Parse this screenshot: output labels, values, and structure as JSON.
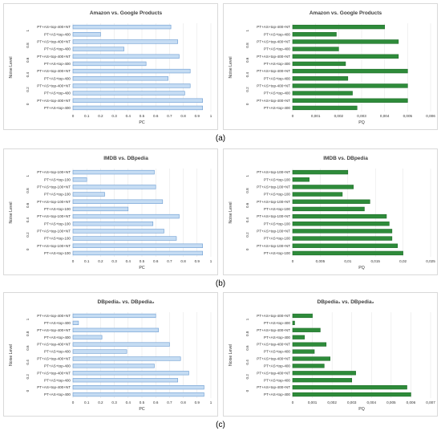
{
  "sub_labels": [
    "(a)",
    "(b)",
    "(c)"
  ],
  "colors": {
    "pc_fill": "#c5dcf3",
    "pc_stroke": "#6a9bd1",
    "pq_fill": "#2e8b3a",
    "pq_stroke": "#1f6e2a"
  },
  "chart_data": [
    {
      "type": "bar",
      "orientation": "horizontal",
      "title": "Amazon vs. Google Products",
      "xlabel": "PC",
      "ylabel": "Noise Level",
      "xlim": [
        0,
        1
      ],
      "xticks": [
        "0",
        "0.1",
        "0.2",
        "0.3",
        "0.4",
        "0.5",
        "0.6",
        "0.7",
        "0.8",
        "0.9",
        "1"
      ],
      "categories": [
        "PT+AS+top-400",
        "PT+AS+top-400+NT",
        "PT+AS+top-400",
        "PT+AS+top-400+NT",
        "PT+AS+top-400",
        "PT+AS+top-400+NT",
        "PT+AS+top-400",
        "PT+AS+top-400+NT",
        "PT+AS+top-400",
        "PT+AS+top-400+NT",
        "PT+AS+top-400",
        "PT+AS+top-400+NT"
      ],
      "noise_levels": [
        "0",
        "0.2",
        "0.4",
        "0.6",
        "0.8",
        "1"
      ],
      "values": [
        0.94,
        0.94,
        0.81,
        0.85,
        0.69,
        0.85,
        0.53,
        0.77,
        0.37,
        0.76,
        0.2,
        0.71
      ]
    },
    {
      "type": "bar",
      "orientation": "horizontal",
      "title": "Amazon vs. Google Products",
      "xlabel": "PQ",
      "ylabel": "Noise Level",
      "xlim": [
        0,
        0.006
      ],
      "xticks": [
        "0",
        "0,001",
        "0,002",
        "0,003",
        "0,004",
        "0,005",
        "0,006"
      ],
      "categories": [
        "PT+AS+top-400",
        "PT+AS+top-400+NT",
        "PT+AS+top-400",
        "PT+AS+top-400+NT",
        "PT+AS+top-400",
        "PT+AS+top-400+NT",
        "PT+AS+top-400",
        "PT+AS+top-400+NT",
        "PT+AS+top-400",
        "PT+AS+top-400+NT",
        "PT+AS+top-400",
        "PT+AS+top-400+NT"
      ],
      "noise_levels": [
        "0",
        "0.2",
        "0.4",
        "0.6",
        "0.8",
        "1"
      ],
      "values": [
        0.0028,
        0.005,
        0.0026,
        0.005,
        0.0024,
        0.005,
        0.0023,
        0.0046,
        0.002,
        0.0046,
        0.0019,
        0.004
      ]
    },
    {
      "type": "bar",
      "orientation": "horizontal",
      "title": "IMDB vs. DBpedia",
      "xlabel": "PC",
      "ylabel": "Noise Level",
      "xlim": [
        0,
        1
      ],
      "xticks": [
        "0",
        "0.1",
        "0.2",
        "0.3",
        "0.4",
        "0.5",
        "0.6",
        "0.7",
        "0.8",
        "0.9",
        "1"
      ],
      "categories": [
        "PT+AS+top-100",
        "PT+AS+top-100+NT",
        "PT+AS+top-100",
        "PT+AS+top-100+NT",
        "PT+AS+top-100",
        "PT+AS+top-100+NT",
        "PT+AS+top-100",
        "PT+AS+top-100+NT",
        "PT+AS+top-100",
        "PT+AS+top-100+NT",
        "PT+AS+top-100",
        "PT+AS+top-100+NT"
      ],
      "noise_levels": [
        "0",
        "0.2",
        "0.4",
        "0.6",
        "0.8",
        "1"
      ],
      "values": [
        0.94,
        0.94,
        0.75,
        0.66,
        0.58,
        0.77,
        0.4,
        0.65,
        0.23,
        0.6,
        0.1,
        0.59
      ]
    },
    {
      "type": "bar",
      "orientation": "horizontal",
      "title": "IMDB vs. DBpedia",
      "xlabel": "PQ",
      "ylabel": "Noise Level",
      "xlim": [
        0,
        0.025
      ],
      "xticks": [
        "0",
        "0,005",
        "0,01",
        "0,015",
        "0,02",
        "0,025"
      ],
      "categories": [
        "PT+AS+top-100",
        "PT+AS+top-100+NT",
        "PT+AS+top-100",
        "PT+AS+top-100+NT",
        "PT+AS+top-100",
        "PT+AS+top-100+NT",
        "PT+AS+top-100",
        "PT+AS+top-100+NT",
        "PT+AS+top-100",
        "PT+AS+top-100+NT",
        "PT+AS+top-100",
        "PT+AS+top-100+NT"
      ],
      "noise_levels": [
        "0",
        "0.2",
        "0.4",
        "0.6",
        "0.8",
        "1"
      ],
      "values": [
        0.02,
        0.019,
        0.018,
        0.018,
        0.0175,
        0.017,
        0.013,
        0.014,
        0.009,
        0.011,
        0.003,
        0.01
      ]
    },
    {
      "type": "bar",
      "orientation": "horizontal",
      "title": "DBpedia₁ vs. DBpedia₂",
      "xlabel": "PC",
      "ylabel": "Noise Level",
      "xlim": [
        0,
        1
      ],
      "xticks": [
        "0",
        "0.1",
        "0.2",
        "0.3",
        "0.4",
        "0.5",
        "0.6",
        "0.7",
        "0.8",
        "0.9",
        "1"
      ],
      "categories": [
        "PT+AS+top-400",
        "PT+AS+top-400+NT",
        "PT+AS+top-400",
        "PT+AS+top-400+NT",
        "PT+AS+top-400",
        "PT+AS+top-400+NT",
        "PT+AS+top-400",
        "PT+AS+top-400+NT",
        "PT+AS+top-400",
        "PT+AS+top-400+NT",
        "PT+AS+top-400",
        "PT+AS+top-400+NT"
      ],
      "noise_levels": [
        "0",
        "0.2",
        "0.4",
        "0.6",
        "0.8",
        "1"
      ],
      "values": [
        0.95,
        0.95,
        0.76,
        0.84,
        0.59,
        0.78,
        0.39,
        0.7,
        0.21,
        0.62,
        0.04,
        0.6
      ]
    },
    {
      "type": "bar",
      "orientation": "horizontal",
      "title": "DBpedia₁ vs. DBpedia₂",
      "xlabel": "PQ",
      "ylabel": "Noise Level",
      "xlim": [
        0,
        0.007
      ],
      "xticks": [
        "0",
        "0,001",
        "0,002",
        "0,003",
        "0,004",
        "0,005",
        "0,006",
        "0,007"
      ],
      "categories": [
        "PT+AS+top-400",
        "PT+AS+top-400+NT",
        "PT+AS+top-400",
        "PT+AS+top-400+NT",
        "PT+AS+top-400",
        "PT+AS+top-400+NT",
        "PT+AS+top-400",
        "PT+AS+top-400+NT",
        "PT+AS+top-400",
        "PT+AS+top-400+NT",
        "PT+AS+top-400",
        "PT+AS+top-400+NT"
      ],
      "noise_levels": [
        "0",
        "0.2",
        "0.4",
        "0.6",
        "0.8",
        "1"
      ],
      "values": [
        0.006,
        0.0058,
        0.003,
        0.0032,
        0.0016,
        0.0019,
        0.0011,
        0.0017,
        0.0006,
        0.0014,
        0.0001,
        0.001
      ]
    }
  ]
}
